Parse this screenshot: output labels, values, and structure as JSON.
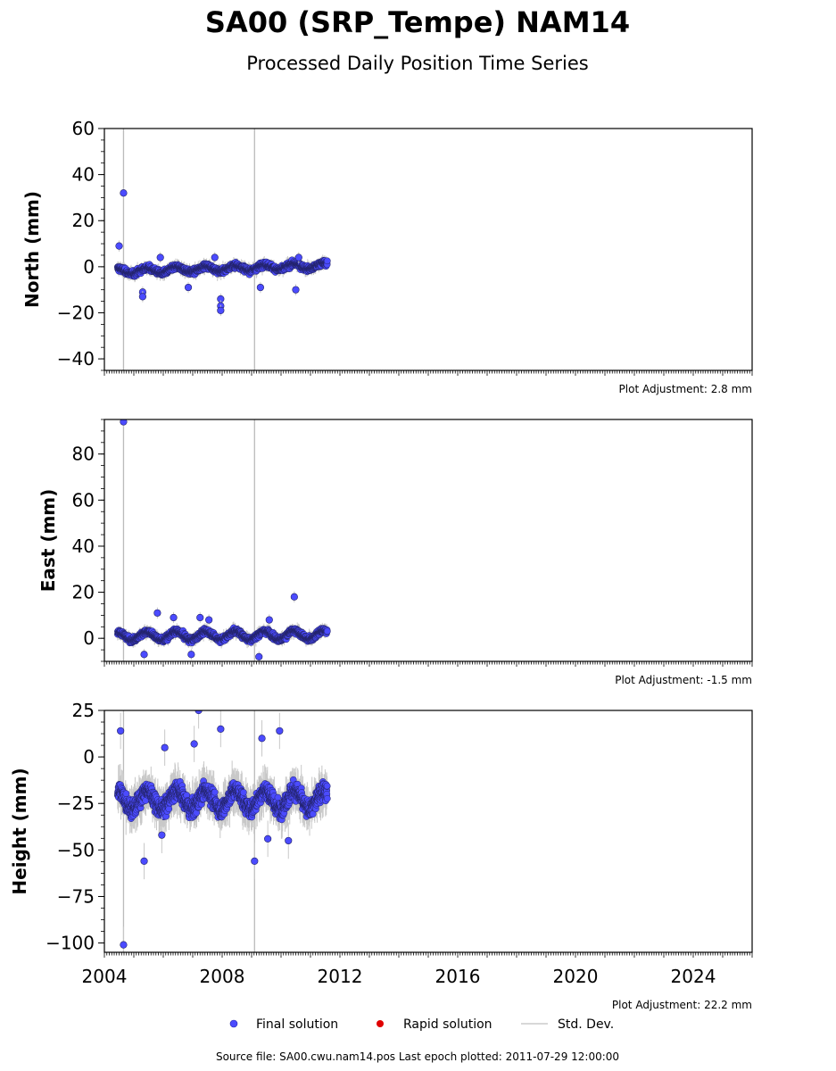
{
  "title": "SA00 (SRP_Tempe) NAM14",
  "subtitle": "Processed Daily Position Time Series",
  "footer": "Source file: SA00.cwu.nam14.pos  Last epoch plotted: 2011-07-29 12:00:00",
  "legend": [
    {
      "label": "Final solution",
      "color": "#4b4bff",
      "marker": "circle"
    },
    {
      "label": "Rapid solution",
      "color": "#e00000",
      "marker": "circle"
    },
    {
      "label": "Std. Dev.",
      "color": "#cccccc",
      "marker": "line"
    }
  ],
  "chart_data": [
    {
      "type": "scatter",
      "ylabel": "North (mm)",
      "xlabel": "",
      "xlim": [
        2004.0,
        2026.0
      ],
      "ylim": [
        -45,
        60
      ],
      "yticks": [
        -40,
        -20,
        0,
        20,
        40,
        60
      ],
      "ytick_labels": [
        "−40",
        "−20",
        "0",
        "20",
        "40",
        "60"
      ],
      "adjustment": "Plot Adjustment: 2.8 mm",
      "data_range": [
        2004.45,
        2011.57
      ],
      "trend": {
        "mean": -2.0,
        "spread": 1.6,
        "seasonal_amp": 1.2,
        "end_shift": 2.5
      },
      "outliers": [
        {
          "x": 2004.65,
          "y": 32
        },
        {
          "x": 2004.5,
          "y": 9
        },
        {
          "x": 2005.3,
          "y": -11
        },
        {
          "x": 2005.3,
          "y": -13
        },
        {
          "x": 2007.95,
          "y": -14
        },
        {
          "x": 2007.95,
          "y": -17
        },
        {
          "x": 2007.95,
          "y": -19
        },
        {
          "x": 2009.3,
          "y": -9
        },
        {
          "x": 2010.5,
          "y": -10
        },
        {
          "x": 2006.85,
          "y": -9
        },
        {
          "x": 2005.9,
          "y": 4
        },
        {
          "x": 2007.75,
          "y": 4
        },
        {
          "x": 2010.6,
          "y": 4
        }
      ],
      "big_errorbars": [
        {
          "x": 2004.65,
          "y": 0,
          "e": 70
        },
        {
          "x": 2009.1,
          "y": 0,
          "e": 75
        }
      ]
    },
    {
      "type": "scatter",
      "ylabel": "East (mm)",
      "xlabel": "",
      "xlim": [
        2004.0,
        2026.0
      ],
      "ylim": [
        -10,
        95
      ],
      "yticks": [
        0,
        20,
        40,
        60,
        80
      ],
      "ytick_labels": [
        "0",
        "20",
        "40",
        "60",
        "80"
      ],
      "adjustment": "Plot Adjustment: -1.5 mm",
      "data_range": [
        2004.45,
        2011.57
      ],
      "trend": {
        "mean": 1.0,
        "spread": 1.6,
        "seasonal_amp": 1.8,
        "end_shift": 0.5
      },
      "outliers": [
        {
          "x": 2004.65,
          "y": 94
        },
        {
          "x": 2010.45,
          "y": 18
        },
        {
          "x": 2005.8,
          "y": 11
        },
        {
          "x": 2006.35,
          "y": 9
        },
        {
          "x": 2007.25,
          "y": 9
        },
        {
          "x": 2007.55,
          "y": 8
        },
        {
          "x": 2009.6,
          "y": 8
        },
        {
          "x": 2005.35,
          "y": -7
        },
        {
          "x": 2006.95,
          "y": -7
        },
        {
          "x": 2009.25,
          "y": -8
        }
      ],
      "big_errorbars": [
        {
          "x": 2004.65,
          "y": 0,
          "e": 95
        },
        {
          "x": 2009.1,
          "y": 0,
          "e": 95
        }
      ]
    },
    {
      "type": "scatter",
      "ylabel": "Height (mm)",
      "xlabel": "",
      "xlim": [
        2004.0,
        2026.0
      ],
      "ylim": [
        -105,
        25
      ],
      "yticks": [
        -100,
        -75,
        -50,
        -25,
        0,
        25
      ],
      "ytick_labels": [
        "−100",
        "−75",
        "−50",
        "−25",
        "0",
        "25"
      ],
      "xticks": [
        2004,
        2008,
        2012,
        2016,
        2020,
        2024
      ],
      "xtick_labels": [
        "2004",
        "2008",
        "2012",
        "2016",
        "2020",
        "2024"
      ],
      "adjustment": "Plot Adjustment: 22.2 mm",
      "data_range": [
        2004.45,
        2011.57
      ],
      "trend": {
        "mean": -23.0,
        "spread": 6.5,
        "seasonal_amp": 5.0,
        "end_shift": 0.0
      },
      "outliers": [
        {
          "x": 2004.65,
          "y": -101
        },
        {
          "x": 2005.35,
          "y": -56
        },
        {
          "x": 2009.1,
          "y": -56
        },
        {
          "x": 2007.2,
          "y": 25
        },
        {
          "x": 2004.55,
          "y": 14
        },
        {
          "x": 2007.95,
          "y": 15
        },
        {
          "x": 2009.95,
          "y": 14
        },
        {
          "x": 2009.35,
          "y": 10
        },
        {
          "x": 2006.05,
          "y": 5
        },
        {
          "x": 2007.05,
          "y": 7
        },
        {
          "x": 2005.95,
          "y": -42
        },
        {
          "x": 2010.25,
          "y": -45
        },
        {
          "x": 2009.55,
          "y": -44
        }
      ],
      "big_errorbars": [
        {
          "x": 2004.65,
          "y": 0,
          "e": 110
        },
        {
          "x": 2009.1,
          "y": 0,
          "e": 110
        }
      ]
    }
  ]
}
